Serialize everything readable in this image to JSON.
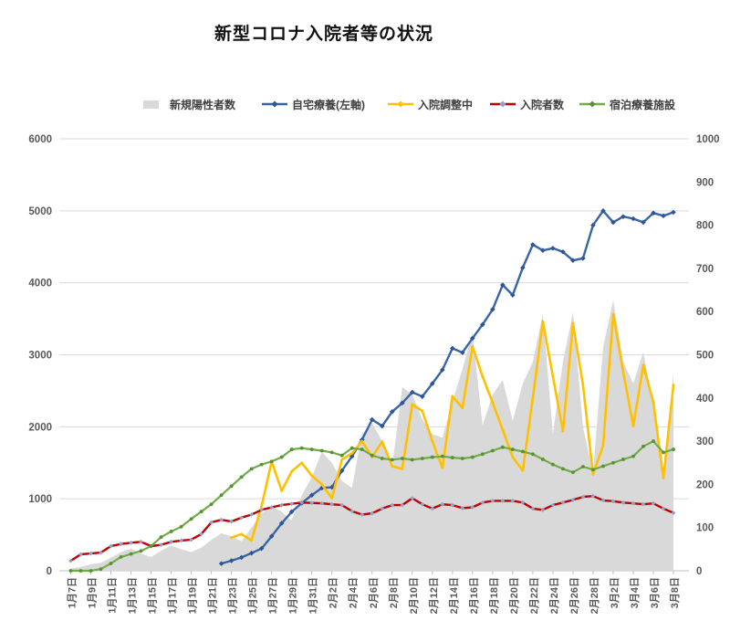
{
  "title": "新型コロナ入院者等の状況",
  "legend": [
    {
      "label": "新規陽性者数",
      "type": "area",
      "color": "#D9D9D9"
    },
    {
      "label": "自宅療養(左軸)",
      "type": "line",
      "color": "#3865A8",
      "marker_color": "#2F5597"
    },
    {
      "label": "入院調整中",
      "type": "line",
      "color": "#FFC000",
      "marker_color": "#FFC000"
    },
    {
      "label": "入院者数",
      "type": "line",
      "color": "#C00000",
      "marker_color": "#8FA2C8"
    },
    {
      "label": "宿泊療養施設",
      "type": "line",
      "color": "#70AD47",
      "marker_color": "#5A9138"
    }
  ],
  "chart_data": {
    "type": "combo-area-line",
    "title": "新型コロナ入院者等の状況",
    "xlabel": "",
    "ylabel_left": "",
    "ylabel_right": "",
    "grid": "horizontal",
    "legend_position": "top",
    "axes": {
      "left": {
        "min": 0,
        "max": 6000,
        "step": 1000
      },
      "right": {
        "min": 0,
        "max": 1000,
        "step": 100
      }
    },
    "x_tick_labels": [
      "1月7日",
      "1月9日",
      "1月11日",
      "1月13日",
      "1月15日",
      "1月17日",
      "1月19日",
      "1月21日",
      "1月23日",
      "1月25日",
      "1月27日",
      "1月29日",
      "1月31日",
      "2月2日",
      "2月4日",
      "2月6日",
      "2月8日",
      "2月10日",
      "2月12日",
      "2月14日",
      "2月16日",
      "2月18日",
      "2月20日",
      "2月22日",
      "2月24日",
      "2月26日",
      "2月28日",
      "3月2日",
      "3月4日",
      "3月6日",
      "3月8日"
    ],
    "x_tick_every_n_points": 2,
    "num_points": 61,
    "series": [
      {
        "name": "新規陽性者数",
        "chart": "area",
        "axis": "left",
        "color": "#D9D9D9",
        "marker": "none",
        "values": [
          30,
          55,
          90,
          110,
          180,
          260,
          310,
          240,
          190,
          280,
          350,
          300,
          260,
          320,
          430,
          520,
          480,
          410,
          600,
          800,
          900,
          820,
          700,
          1050,
          1300,
          1650,
          1500,
          1250,
          1150,
          1900,
          2050,
          1800,
          1450,
          2550,
          2450,
          2100,
          1900,
          1850,
          2350,
          2800,
          3310,
          2020,
          2450,
          2650,
          2080,
          2600,
          2900,
          3570,
          1900,
          2900,
          3590,
          2000,
          1360,
          3100,
          3760,
          2900,
          2600,
          3040,
          2300,
          1290,
          2750
        ]
      },
      {
        "name": "自宅療養(左軸)",
        "chart": "line",
        "axis": "left",
        "color": "#3865A8",
        "marker": "diamond",
        "marker_color": "#2F5597",
        "values": [
          null,
          null,
          null,
          null,
          null,
          null,
          null,
          null,
          null,
          null,
          null,
          null,
          null,
          null,
          null,
          100,
          140,
          185,
          245,
          310,
          480,
          660,
          820,
          940,
          1050,
          1150,
          1160,
          1390,
          1590,
          1820,
          2100,
          2010,
          2210,
          2330,
          2480,
          2420,
          2600,
          2790,
          3090,
          3030,
          3230,
          3420,
          3630,
          3970,
          3830,
          4210,
          4530,
          4450,
          4480,
          4430,
          4310,
          4340,
          4800,
          5000,
          4840,
          4920,
          4890,
          4840,
          4970,
          4930,
          4980
        ]
      },
      {
        "name": "入院調整中",
        "chart": "line",
        "axis": "right",
        "color": "#FFC000",
        "marker": "diamond",
        "marker_color": "#FFC000",
        "values": [
          null,
          null,
          null,
          null,
          null,
          null,
          null,
          null,
          null,
          null,
          null,
          null,
          null,
          null,
          null,
          null,
          77,
          85,
          70,
          150,
          253,
          185,
          230,
          250,
          220,
          200,
          168,
          257,
          272,
          300,
          263,
          299,
          242,
          236,
          385,
          370,
          300,
          238,
          404,
          377,
          519,
          450,
          389,
          326,
          263,
          232,
          400,
          577,
          450,
          323,
          573,
          430,
          223,
          290,
          594,
          460,
          335,
          476,
          390,
          215,
          430
        ]
      },
      {
        "name": "入院者数",
        "chart": "line",
        "axis": "right",
        "color": "#C00000",
        "marker": "diamond",
        "marker_color": "#8FA2C8",
        "values": [
          23,
          38,
          40,
          42,
          57,
          62,
          65,
          67,
          57,
          60,
          67,
          70,
          72,
          85,
          112,
          118,
          114,
          123,
          130,
          141,
          147,
          152,
          155,
          158,
          157,
          156,
          154,
          152,
          138,
          130,
          133,
          144,
          152,
          152,
          168,
          154,
          144,
          154,
          152,
          145,
          147,
          158,
          162,
          162,
          162,
          158,
          144,
          141,
          152,
          158,
          164,
          171,
          173,
          163,
          161,
          158,
          156,
          154,
          156,
          144,
          134
        ]
      },
      {
        "name": "宿泊療養施設",
        "chart": "line",
        "axis": "right",
        "color": "#70AD47",
        "marker": "circle",
        "marker_color": "#5A9138",
        "values": [
          0,
          0,
          0,
          4,
          17,
          32,
          39,
          46,
          57,
          78,
          91,
          102,
          120,
          137,
          154,
          175,
          196,
          217,
          236,
          246,
          253,
          263,
          281,
          284,
          281,
          278,
          274,
          267,
          284,
          281,
          267,
          260,
          257,
          260,
          257,
          260,
          263,
          265,
          262,
          260,
          263,
          270,
          278,
          286,
          281,
          276,
          270,
          258,
          246,
          236,
          228,
          241,
          234,
          242,
          250,
          258,
          265,
          288,
          300,
          274,
          281
        ]
      }
    ]
  },
  "colors": {
    "gridline": "#D9D9D9",
    "axis_line": "#BFBFBF",
    "tick_label": "#595959",
    "title_text": "#111111"
  }
}
